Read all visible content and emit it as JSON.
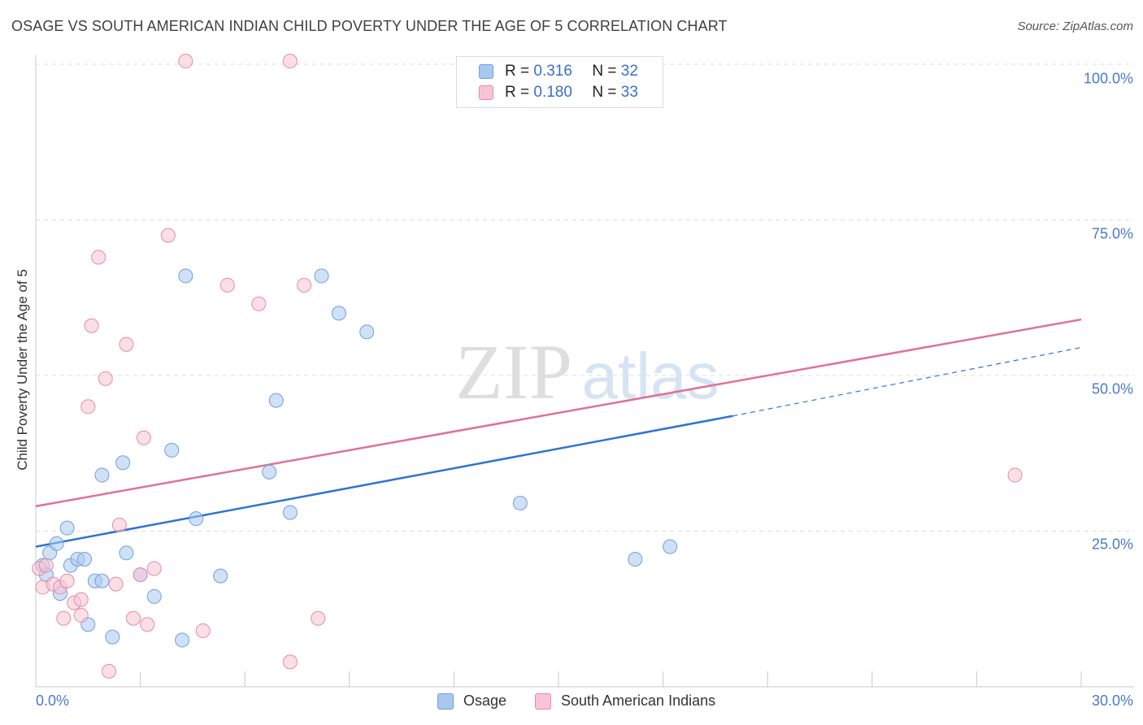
{
  "header": {
    "title": "OSAGE VS SOUTH AMERICAN INDIAN CHILD POVERTY UNDER THE AGE OF 5 CORRELATION CHART",
    "source": "Source: ZipAtlas.com"
  },
  "watermark": {
    "zip": "ZIP",
    "atlas": "atlas"
  },
  "legend": {
    "rows": [
      {
        "r_label": "R =",
        "r_value": "0.316",
        "n_label": "N =",
        "n_value": "32",
        "color": "#a9c8f0",
        "border": "#6f9fdc"
      },
      {
        "r_label": "R =",
        "r_value": "0.180",
        "n_label": "N =",
        "n_value": "33",
        "color": "#f8c4d4",
        "border": "#e58aa7"
      }
    ]
  },
  "bottom_legend": [
    {
      "label": "Osage",
      "color": "#a9c8f0",
      "border": "#6f9fdc"
    },
    {
      "label": "South American Indians",
      "color": "#f8c4d4",
      "border": "#e58aa7"
    }
  ],
  "chart_data": {
    "type": "scatter",
    "title": "OSAGE VS SOUTH AMERICAN INDIAN CHILD POVERTY UNDER THE AGE OF 5 CORRELATION CHART",
    "xlabel": "",
    "ylabel": "Child Poverty Under the Age of 5",
    "xlim": [
      0,
      30
    ],
    "ylim": [
      0,
      100
    ],
    "x_tick_labels": [
      "0.0%",
      "30.0%"
    ],
    "y_ticks": [
      25,
      50,
      75,
      100
    ],
    "y_tick_labels": [
      "25.0%",
      "50.0%",
      "75.0%",
      "100.0%"
    ],
    "grid": "horizontal dashed",
    "series": [
      {
        "name": "Osage",
        "color": "#a9c8f0",
        "stroke": "#6f9fdc",
        "line_color": "#2f74d0",
        "points": [
          [
            0.2,
            19.5
          ],
          [
            0.4,
            21.5
          ],
          [
            0.6,
            23.0
          ],
          [
            0.9,
            25.5
          ],
          [
            1.0,
            19.5
          ],
          [
            1.2,
            20.5
          ],
          [
            0.7,
            15.0
          ],
          [
            1.4,
            20.5
          ],
          [
            1.7,
            17.0
          ],
          [
            1.9,
            17.0
          ],
          [
            1.9,
            34.0
          ],
          [
            2.5,
            36.0
          ],
          [
            2.6,
            21.5
          ],
          [
            3.0,
            18.0
          ],
          [
            3.4,
            14.5
          ],
          [
            3.9,
            38.0
          ],
          [
            4.3,
            66.0
          ],
          [
            4.6,
            27.0
          ],
          [
            5.3,
            17.8
          ],
          [
            6.7,
            34.5
          ],
          [
            6.9,
            46.0
          ],
          [
            7.3,
            28.0
          ],
          [
            8.2,
            66.0
          ],
          [
            8.7,
            60.0
          ],
          [
            9.5,
            57.0
          ],
          [
            13.9,
            29.5
          ],
          [
            17.2,
            20.5
          ],
          [
            18.2,
            22.5
          ],
          [
            1.5,
            10.0
          ],
          [
            2.2,
            8.0
          ],
          [
            4.2,
            7.5
          ],
          [
            0.3,
            18.0
          ]
        ],
        "trend": {
          "x0": 0,
          "y0": 22.5,
          "x1": 20,
          "y1": 43.5,
          "dashed_to_x": 30,
          "dashed_to_y": 54.5
        }
      },
      {
        "name": "South American Indians",
        "color": "#f8c4d4",
        "stroke": "#e58aa7",
        "line_color": "#e0709a",
        "points": [
          [
            0.1,
            19.0
          ],
          [
            0.2,
            16.0
          ],
          [
            0.3,
            19.5
          ],
          [
            0.5,
            16.5
          ],
          [
            0.7,
            16.0
          ],
          [
            0.9,
            17.0
          ],
          [
            1.1,
            13.5
          ],
          [
            1.3,
            11.5
          ],
          [
            1.3,
            14.0
          ],
          [
            0.8,
            11.0
          ],
          [
            1.6,
            58.0
          ],
          [
            1.8,
            69.0
          ],
          [
            2.0,
            49.5
          ],
          [
            1.5,
            45.0
          ],
          [
            2.6,
            55.0
          ],
          [
            2.4,
            26.0
          ],
          [
            2.3,
            16.5
          ],
          [
            2.8,
            11.0
          ],
          [
            3.0,
            18.0
          ],
          [
            3.4,
            19.0
          ],
          [
            3.1,
            40.0
          ],
          [
            3.2,
            10.0
          ],
          [
            3.8,
            72.5
          ],
          [
            4.3,
            100.5
          ],
          [
            4.8,
            9.0
          ],
          [
            5.5,
            64.5
          ],
          [
            6.4,
            61.5
          ],
          [
            7.3,
            100.5
          ],
          [
            7.7,
            64.5
          ],
          [
            8.1,
            11.0
          ],
          [
            7.3,
            4.0
          ],
          [
            28.1,
            34.0
          ],
          [
            2.1,
            2.5
          ]
        ],
        "trend": {
          "x0": 0,
          "y0": 29.0,
          "x1": 30,
          "y1": 59.0
        }
      }
    ]
  }
}
